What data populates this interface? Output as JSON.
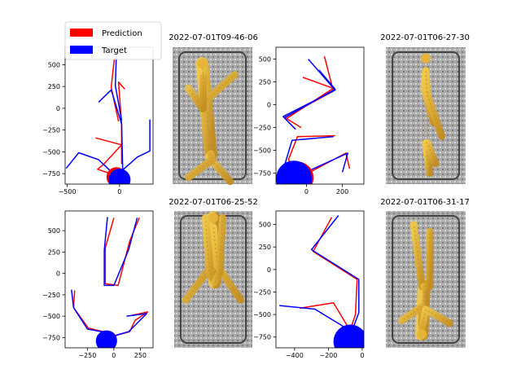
{
  "legend": {
    "items": [
      {
        "label": "Prediction",
        "color": "#ff0000"
      },
      {
        "label": "Target",
        "color": "#0000ff"
      }
    ]
  },
  "chart_data": [
    {
      "type": "line",
      "panel": "top-left-plot",
      "xlim": [
        -520,
        320
      ],
      "ylim": [
        -870,
        700
      ],
      "xticks": [
        -500,
        0
      ],
      "yticks": [
        500,
        250,
        0,
        -250,
        -500,
        -750
      ],
      "series": [
        {
          "name": "Prediction",
          "color": "#ff0000",
          "segments": [
            [
              [
                -50,
                560
              ],
              [
                -80,
                240
              ],
              [
                -10,
                -150
              ]
            ],
            [
              [
                50,
                220
              ],
              [
                -10,
                300
              ],
              [
                20,
                -180
              ],
              [
                20,
                -640
              ]
            ],
            [
              [
                -230,
                -340
              ],
              [
                20,
                -420
              ],
              [
                -150,
                -640
              ],
              [
                -210,
                -700
              ],
              [
                -60,
                -760
              ],
              [
                -30,
                -790
              ]
            ],
            [
              [
                -40,
                -790
              ],
              [
                20,
                -700
              ]
            ]
          ],
          "circle": {
            "x": -30,
            "y": -790,
            "r": 95
          }
        },
        {
          "name": "Target",
          "color": "#0000ff",
          "segments": [
            [
              [
                -30,
                640
              ],
              [
                -40,
                260
              ],
              [
                20,
                -140
              ]
            ],
            [
              [
                -200,
                70
              ],
              [
                -80,
                210
              ],
              [
                20,
                -180
              ],
              [
                30,
                -700
              ]
            ],
            [
              [
                -510,
                -690
              ],
              [
                -390,
                -510
              ],
              [
                -200,
                -590
              ],
              [
                -50,
                -760
              ]
            ],
            [
              [
                290,
                -130
              ],
              [
                290,
                -490
              ],
              [
                170,
                -560
              ],
              [
                20,
                -720
              ]
            ]
          ],
          "circle": {
            "x": 0,
            "y": -820,
            "r": 105
          }
        }
      ]
    },
    {
      "type": "line",
      "panel": "top-middle-plot",
      "xlim": [
        -170,
        320
      ],
      "ylim": [
        -870,
        630
      ],
      "xticks": [
        0,
        200
      ],
      "yticks": [
        500,
        250,
        0,
        -250,
        -500,
        -750
      ],
      "series": [
        {
          "name": "Prediction",
          "color": "#ff0000",
          "segments": [
            [
              [
                100,
                530
              ],
              [
                150,
                150
              ],
              [
                -120,
                -140
              ],
              [
                -30,
                -250
              ]
            ],
            [
              [
                -20,
                300
              ],
              [
                150,
                180
              ],
              [
                -110,
                -150
              ]
            ],
            [
              [
                160,
                -340
              ],
              [
                -50,
                -350
              ],
              [
                -100,
                -600
              ],
              [
                -70,
                -720
              ],
              [
                -20,
                -780
              ]
            ],
            [
              [
                -20,
                -780
              ],
              [
                220,
                -530
              ],
              [
                240,
                -700
              ]
            ]
          ],
          "circle": {
            "x": -50,
            "y": -800,
            "r": 90
          }
        },
        {
          "name": "Target",
          "color": "#0000ff",
          "segments": [
            [
              [
                10,
                500
              ],
              [
                160,
                160
              ],
              [
                -130,
                -130
              ],
              [
                -60,
                -270
              ]
            ],
            [
              [
                70,
                380
              ],
              [
                160,
                170
              ],
              [
                -120,
                -140
              ]
            ],
            [
              [
                150,
                -350
              ],
              [
                -80,
                -390
              ],
              [
                -120,
                -650
              ],
              [
                -60,
                -790
              ]
            ],
            [
              [
                -60,
                -790
              ],
              [
                230,
                -530
              ],
              [
                200,
                -740
              ]
            ]
          ],
          "circle": {
            "x": -70,
            "y": -810,
            "r": 100
          }
        }
      ]
    },
    {
      "type": "line",
      "panel": "bottom-left-plot",
      "xlim": [
        -460,
        370
      ],
      "ylim": [
        -870,
        730
      ],
      "xticks": [
        -250,
        0,
        250
      ],
      "yticks": [
        500,
        250,
        0,
        -250,
        -500,
        -750
      ],
      "series": [
        {
          "name": "Prediction",
          "color": "#ff0000",
          "segments": [
            [
              [
                0,
                650
              ],
              [
                -80,
                300
              ],
              [
                -80,
                -120
              ],
              [
                40,
                -140
              ],
              [
                150,
                380
              ],
              [
                240,
                650
              ]
            ],
            [
              [
                -370,
                -200
              ],
              [
                -380,
                -400
              ],
              [
                -240,
                -640
              ],
              [
                -100,
                -680
              ],
              [
                -80,
                -760
              ]
            ],
            [
              [
                170,
                -490
              ],
              [
                320,
                -450
              ],
              [
                200,
                -550
              ],
              [
                150,
                -680
              ],
              [
                -80,
                -760
              ]
            ]
          ],
          "circle": {
            "x": -60,
            "y": -780,
            "r": 90
          }
        },
        {
          "name": "Target",
          "color": "#0000ff",
          "segments": [
            [
              [
                -60,
                660
              ],
              [
                -90,
                270
              ],
              [
                -90,
                -140
              ],
              [
                0,
                -140
              ],
              [
                140,
                280
              ],
              [
                220,
                650
              ]
            ],
            [
              [
                -400,
                -190
              ],
              [
                -380,
                -400
              ],
              [
                -250,
                -650
              ],
              [
                -80,
                -690
              ],
              [
                -90,
                -770
              ]
            ],
            [
              [
                120,
                -500
              ],
              [
                310,
                -470
              ],
              [
                140,
                -680
              ],
              [
                -80,
                -760
              ]
            ]
          ],
          "circle": {
            "x": -70,
            "y": -790,
            "r": 100
          }
        }
      ]
    },
    {
      "type": "line",
      "panel": "bottom-middle-plot",
      "xlim": [
        -510,
        10
      ],
      "ylim": [
        -870,
        650
      ],
      "xticks": [
        -400,
        -200,
        0
      ],
      "yticks": [
        500,
        250,
        0,
        -250,
        -500,
        -750
      ],
      "series": [
        {
          "name": "Prediction",
          "color": "#ff0000",
          "segments": [
            [
              [
                -180,
                580
              ],
              [
                -290,
                200
              ],
              [
                -30,
                -110
              ],
              [
                -40,
                -500
              ],
              [
                -70,
                -670
              ]
            ],
            [
              [
                -370,
                -430
              ],
              [
                -170,
                -370
              ],
              [
                -80,
                -650
              ]
            ]
          ],
          "circle": {
            "x": -70,
            "y": -790,
            "r": 95
          }
        },
        {
          "name": "Target",
          "color": "#0000ff",
          "segments": [
            [
              [
                -140,
                600
              ],
              [
                -300,
                220
              ],
              [
                -20,
                -110
              ],
              [
                -20,
                -480
              ],
              [
                -60,
                -680
              ]
            ],
            [
              [
                -490,
                -400
              ],
              [
                -280,
                -440
              ],
              [
                -70,
                -680
              ]
            ]
          ],
          "circle": {
            "x": -70,
            "y": -800,
            "r": 100
          }
        }
      ]
    }
  ],
  "images": [
    {
      "title": "2022-07-01T09-46-06",
      "pose": {
        "head": [
          0.37,
          0.12
        ],
        "pelvis": [
          0.48,
          0.78
        ],
        "arms": [
          [
            [
              0.4,
              0.4
            ],
            [
              0.78,
              0.2
            ]
          ],
          [
            [
              0.38,
              0.45
            ],
            [
              0.2,
              0.3
            ]
          ]
        ],
        "legs": [
          [
            [
              0.45,
              0.8
            ],
            [
              0.72,
              0.98
            ]
          ],
          [
            [
              0.5,
              0.82
            ],
            [
              0.2,
              0.95
            ]
          ]
        ]
      }
    },
    {
      "title": "2022-07-01T06-27-30",
      "pose": {
        "head": [
          0.5,
          0.08
        ],
        "pelvis": [
          0.5,
          0.7
        ],
        "arms": [
          [
            [
              0.48,
              0.3
            ],
            [
              0.6,
              0.55
            ]
          ],
          [
            [
              0.52,
              0.35
            ],
            [
              0.7,
              0.65
            ]
          ]
        ],
        "legs": [
          [
            [
              0.5,
              0.72
            ],
            [
              0.55,
              0.92
            ]
          ],
          [
            [
              0.52,
              0.7
            ],
            [
              0.62,
              0.85
            ]
          ]
        ]
      }
    },
    {
      "title": "2022-07-01T06-25-52",
      "pose": {
        "head": [
          0.5,
          0.05
        ],
        "pelvis": [
          0.52,
          0.52
        ],
        "arms": [
          [
            [
              0.48,
              0.4
            ],
            [
              0.15,
              0.65
            ]
          ],
          [
            [
              0.55,
              0.4
            ],
            [
              0.85,
              0.65
            ]
          ]
        ],
        "legs": [
          [
            [
              0.45,
              0.45
            ],
            [
              0.4,
              0.05
            ]
          ],
          [
            [
              0.58,
              0.45
            ],
            [
              0.62,
              0.05
            ]
          ]
        ]
      }
    },
    {
      "title": "2022-07-01T06-31-17",
      "pose": {
        "head": [
          0.45,
          0.9
        ],
        "pelvis": [
          0.48,
          0.55
        ],
        "arms": [
          [
            [
              0.45,
              0.7
            ],
            [
              0.2,
              0.8
            ]
          ],
          [
            [
              0.5,
              0.72
            ],
            [
              0.8,
              0.82
            ]
          ]
        ],
        "legs": [
          [
            [
              0.45,
              0.55
            ],
            [
              0.35,
              0.1
            ]
          ],
          [
            [
              0.55,
              0.55
            ],
            [
              0.55,
              0.15
            ]
          ]
        ]
      }
    }
  ]
}
